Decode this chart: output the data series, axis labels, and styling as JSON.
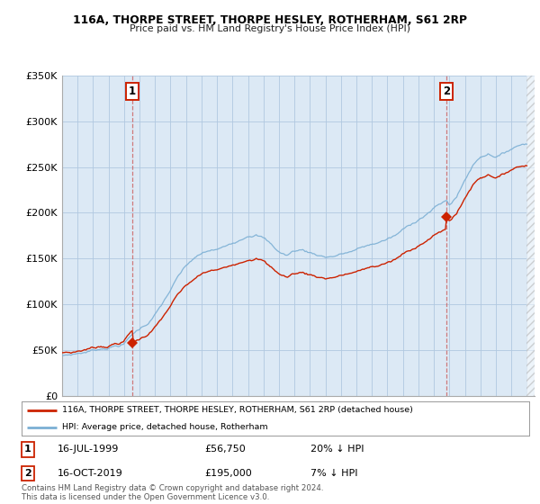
{
  "title1": "116A, THORPE STREET, THORPE HESLEY, ROTHERHAM, S61 2RP",
  "title2": "Price paid vs. HM Land Registry's House Price Index (HPI)",
  "ylim": [
    0,
    350000
  ],
  "yticks": [
    0,
    50000,
    100000,
    150000,
    200000,
    250000,
    300000,
    350000
  ],
  "ytick_labels": [
    "£0",
    "£50K",
    "£100K",
    "£150K",
    "£200K",
    "£250K",
    "£300K",
    "£350K"
  ],
  "hpi_color": "#7bafd4",
  "price_color": "#cc2200",
  "marker_color": "#cc2200",
  "dashed_color": "#cc6666",
  "background_color": "#dce9f5",
  "plot_bg_color": "#dce9f5",
  "grid_color": "#b0c8e0",
  "sale1_year": 1999.54,
  "sale1_price": 56750,
  "sale2_year": 2019.79,
  "sale2_price": 195000,
  "legend_line1": "116A, THORPE STREET, THORPE HESLEY, ROTHERHAM, S61 2RP (detached house)",
  "legend_line2": "HPI: Average price, detached house, Rotherham",
  "annotation1_date": "16-JUL-1999",
  "annotation1_price": "£56,750",
  "annotation1_hpi": "20% ↓ HPI",
  "annotation2_date": "16-OCT-2019",
  "annotation2_price": "£195,000",
  "annotation2_hpi": "7% ↓ HPI",
  "footer": "Contains HM Land Registry data © Crown copyright and database right 2024.\nThis data is licensed under the Open Government Licence v3.0."
}
